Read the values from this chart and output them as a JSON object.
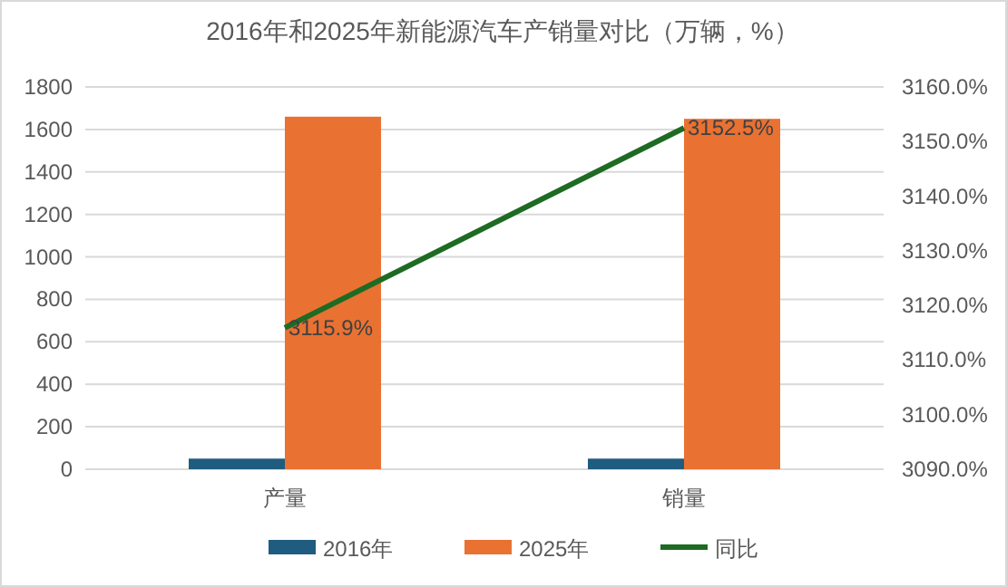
{
  "chart_data": {
    "type": "bar",
    "title": "2016年和2025年新能源汽车产销量对比（万辆，%）",
    "categories": [
      "产量",
      "销量"
    ],
    "series": [
      {
        "name": "2016年",
        "color": "#1f5c7f",
        "values": [
          50,
          50
        ]
      },
      {
        "name": "2025年",
        "color": "#e97132",
        "values": [
          1660,
          1650
        ]
      },
      {
        "name": "同比",
        "type": "line",
        "axis": "y2",
        "color": "#1e6b24",
        "values": [
          3115.9,
          3152.5
        ],
        "value_labels": [
          "3115.9%",
          "3152.5%"
        ]
      }
    ],
    "ylim": [
      0,
      1800
    ],
    "yticks": [
      0,
      200,
      400,
      600,
      800,
      1000,
      1200,
      1400,
      1600,
      1800
    ],
    "y2lim": [
      3090,
      3160
    ],
    "y2ticks": [
      {
        "value": 3090,
        "label": "3090.0%"
      },
      {
        "value": 3100,
        "label": "3100.0%"
      },
      {
        "value": 3110,
        "label": "3110.0%"
      },
      {
        "value": 3120,
        "label": "3120.0%"
      },
      {
        "value": 3130,
        "label": "3130.0%"
      },
      {
        "value": 3140,
        "label": "3140.0%"
      },
      {
        "value": 3150,
        "label": "3150.0%"
      },
      {
        "value": 3160,
        "label": "3160.0%"
      }
    ],
    "grid": "y",
    "legend": "bottom",
    "marker": "none"
  }
}
